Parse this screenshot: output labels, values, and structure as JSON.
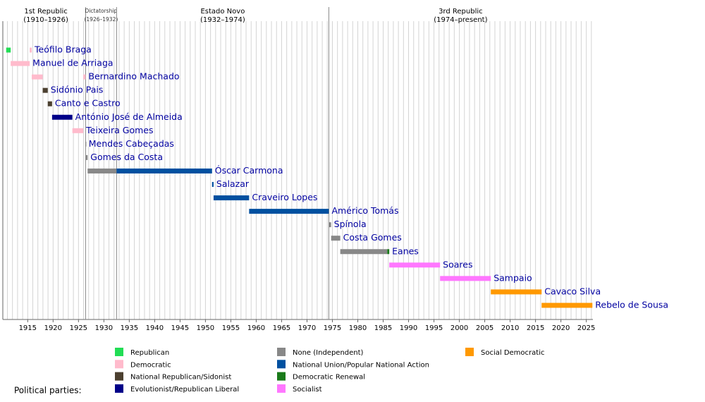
{
  "chart_data": {
    "type": "timeline",
    "xlim": [
      1910.1,
      2026.3
    ],
    "xticks": [
      1915,
      1920,
      1925,
      1930,
      1935,
      1940,
      1945,
      1950,
      1955,
      1960,
      1965,
      1970,
      1975,
      1980,
      1985,
      1990,
      1995,
      2000,
      2005,
      2010,
      2015,
      2020,
      2025
    ],
    "minor_grid_step": 1,
    "eras": [
      {
        "label": "1st Republic",
        "sublabel": "(1910–1926)",
        "start": 1910.76,
        "end": 1926.4
      },
      {
        "label": "Dictatorship",
        "sublabel": "(1926–1932)",
        "start": 1926.4,
        "end": 1932.5
      },
      {
        "label": "Estado Novo",
        "sublabel": "(1932–1974)",
        "start": 1932.5,
        "end": 1974.3
      },
      {
        "label": "3rd Republic",
        "sublabel": "(1974–present)",
        "start": 1974.3,
        "end": 2026.2
      }
    ],
    "legend_title": "Political parties:",
    "parties": [
      {
        "name": "Republican",
        "color": "#22dd55"
      },
      {
        "name": "Democratic",
        "color": "#ffbbcc"
      },
      {
        "name": "National Republican/Sidonist",
        "color": "#4c4030"
      },
      {
        "name": "Evolutionist/Republican Liberal",
        "color": "#000088"
      },
      {
        "name": "None (Independent)",
        "color": "#888888"
      },
      {
        "name": "National Union/Popular National Action",
        "color": "#0050a0"
      },
      {
        "name": "Democratic Renewal",
        "color": "#1a7a1a"
      },
      {
        "name": "Socialist",
        "color": "#ff77ff"
      },
      {
        "name": "Social Democratic",
        "color": "#ff9900"
      }
    ],
    "rows": [
      {
        "label": "Teófilo Braga",
        "terms": [
          {
            "start": 1910.76,
            "end": 1911.65,
            "party": "Republican"
          },
          {
            "start": 1915.4,
            "end": 1915.8,
            "party": "Democratic"
          }
        ]
      },
      {
        "label": "Manuel de Arriaga",
        "terms": [
          {
            "start": 1911.65,
            "end": 1915.4,
            "party": "Democratic"
          }
        ]
      },
      {
        "label": "Bernardino Machado",
        "terms": [
          {
            "start": 1915.8,
            "end": 1917.95,
            "party": "Democratic"
          },
          {
            "start": 1925.95,
            "end": 1926.4,
            "party": "Democratic"
          }
        ]
      },
      {
        "label": "Sidónio Pais",
        "terms": [
          {
            "start": 1917.95,
            "end": 1918.95,
            "party": "National Republican/Sidonist"
          }
        ]
      },
      {
        "label": "Canto e Castro",
        "terms": [
          {
            "start": 1918.95,
            "end": 1919.8,
            "party": "National Republican/Sidonist"
          }
        ]
      },
      {
        "label": "António José de Almeida",
        "terms": [
          {
            "start": 1919.8,
            "end": 1923.8,
            "party": "Evolutionist/Republican Liberal"
          }
        ]
      },
      {
        "label": "Teixeira Gomes",
        "terms": [
          {
            "start": 1923.8,
            "end": 1925.95,
            "party": "Democratic"
          }
        ]
      },
      {
        "label": "Mendes Cabeçadas",
        "terms": [
          {
            "start": 1926.4,
            "end": 1926.45,
            "party": "None (Independent)"
          }
        ]
      },
      {
        "label": "Gomes da Costa",
        "terms": [
          {
            "start": 1926.45,
            "end": 1926.8,
            "party": "None (Independent)"
          }
        ]
      },
      {
        "label": "Óscar Carmona",
        "terms": [
          {
            "start": 1926.8,
            "end": 1932.5,
            "party": "None (Independent)"
          },
          {
            "start": 1932.5,
            "end": 1951.3,
            "party": "National Union/Popular National Action"
          }
        ]
      },
      {
        "label": "Salazar",
        "terms": [
          {
            "start": 1951.3,
            "end": 1951.6,
            "party": "National Union/Popular National Action"
          }
        ]
      },
      {
        "label": "Craveiro Lopes",
        "terms": [
          {
            "start": 1951.6,
            "end": 1958.6,
            "party": "National Union/Popular National Action"
          }
        ]
      },
      {
        "label": "Américo Tomás",
        "terms": [
          {
            "start": 1958.6,
            "end": 1974.3,
            "party": "National Union/Popular National Action"
          }
        ]
      },
      {
        "label": "Spínola",
        "terms": [
          {
            "start": 1974.3,
            "end": 1974.75,
            "party": "None (Independent)"
          }
        ]
      },
      {
        "label": "Costa Gomes",
        "terms": [
          {
            "start": 1974.75,
            "end": 1976.55,
            "party": "None (Independent)"
          }
        ]
      },
      {
        "label": "Eanes",
        "terms": [
          {
            "start": 1976.55,
            "end": 1985.8,
            "party": "None (Independent)"
          },
          {
            "start": 1985.8,
            "end": 1986.2,
            "party": "Democratic Renewal"
          }
        ]
      },
      {
        "label": "Soares",
        "terms": [
          {
            "start": 1986.2,
            "end": 1996.2,
            "party": "Socialist"
          }
        ]
      },
      {
        "label": "Sampaio",
        "terms": [
          {
            "start": 1996.2,
            "end": 2006.2,
            "party": "Socialist"
          }
        ]
      },
      {
        "label": "Cavaco Silva",
        "terms": [
          {
            "start": 2006.2,
            "end": 2016.2,
            "party": "Social Democratic"
          }
        ]
      },
      {
        "label": "Rebelo de Sousa",
        "terms": [
          {
            "start": 2016.2,
            "end": 2026.2,
            "party": "Social Democratic"
          }
        ]
      }
    ]
  }
}
